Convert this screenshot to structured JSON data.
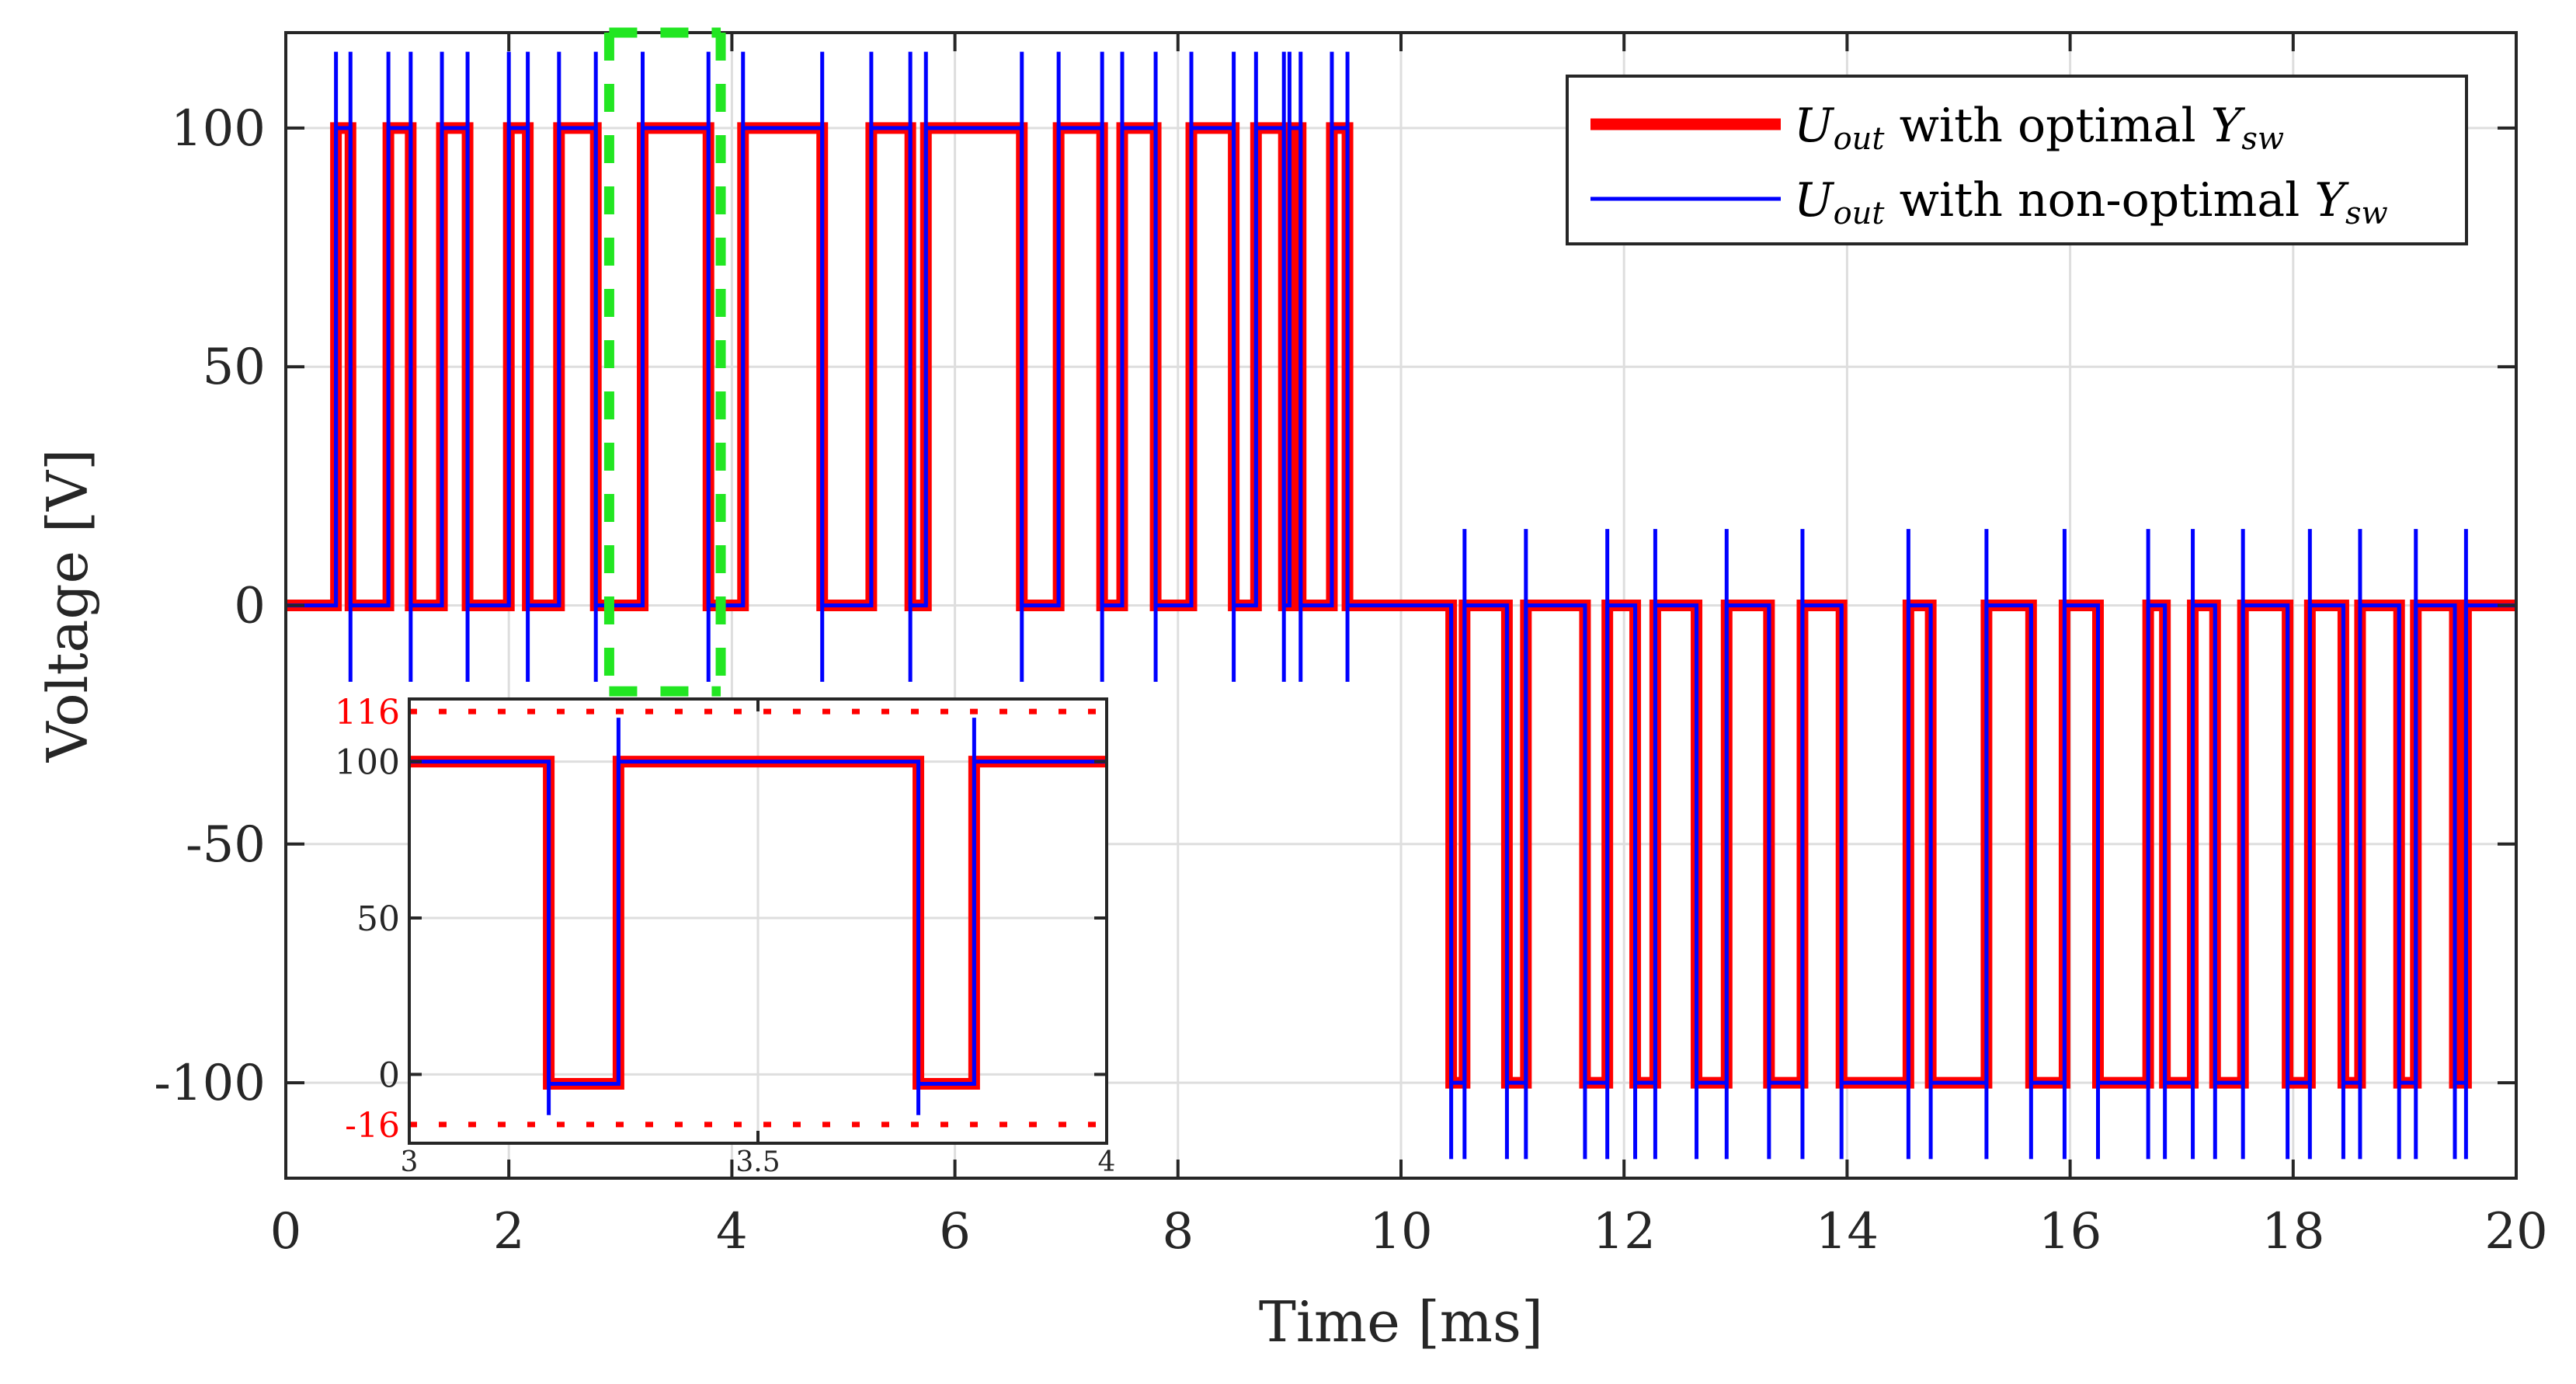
{
  "chart_data": {
    "type": "line",
    "xlabel": "Time [ms]",
    "ylabel": "Voltage [V]",
    "xlim": [
      0,
      20
    ],
    "ylim": [
      -120,
      120
    ],
    "xticks": [
      "0",
      "2",
      "4",
      "6",
      "8",
      "10",
      "12",
      "14",
      "16",
      "18",
      "20"
    ],
    "yticks": [
      "-100",
      "-50",
      "0",
      "50",
      "100"
    ],
    "xtick_values": [
      0,
      2,
      4,
      6,
      8,
      10,
      12,
      14,
      16,
      18,
      20
    ],
    "ytick_values": [
      -100,
      -50,
      0,
      50,
      100
    ],
    "grid": true,
    "legend_position": "top-right",
    "legend": [
      {
        "prefix": "U",
        "prefix_sub": "out",
        "middle": " with optimal ",
        "suffix": "Y",
        "suffix_sub": "sw",
        "color": "#ff0000"
      },
      {
        "prefix": "U",
        "prefix_sub": "out",
        "middle": " with non-optimal ",
        "suffix": "Y",
        "suffix_sub": "sw",
        "color": "#0000ff"
      }
    ],
    "series": [
      {
        "color": "#ff0000",
        "pulses_positive": [
          [
            0.45,
            0.58
          ],
          [
            0.92,
            1.12
          ],
          [
            1.4,
            1.63
          ],
          [
            2.0,
            2.17
          ],
          [
            2.45,
            2.78
          ],
          [
            3.2,
            3.79
          ],
          [
            4.1,
            4.81
          ],
          [
            5.25,
            5.6
          ],
          [
            5.74,
            6.6
          ],
          [
            6.93,
            7.32
          ],
          [
            7.5,
            7.8
          ],
          [
            8.12,
            8.5
          ],
          [
            8.7,
            8.95
          ],
          [
            9.0,
            9.1
          ],
          [
            9.38,
            9.52
          ]
        ],
        "pulses_negative": [
          [
            10.45,
            10.57
          ],
          [
            10.95,
            11.12
          ],
          [
            11.65,
            11.85
          ],
          [
            12.1,
            12.28
          ],
          [
            12.65,
            12.92
          ],
          [
            13.3,
            13.6
          ],
          [
            13.95,
            14.55
          ],
          [
            14.75,
            15.25
          ],
          [
            15.65,
            15.95
          ],
          [
            16.25,
            16.7
          ],
          [
            16.85,
            17.1
          ],
          [
            17.3,
            17.55
          ],
          [
            17.95,
            18.15
          ],
          [
            18.45,
            18.6
          ],
          [
            18.95,
            19.1
          ],
          [
            19.45,
            19.55
          ]
        ],
        "high": 100,
        "low": -100
      },
      {
        "color": "#0000ff",
        "spike_high": 116,
        "spike_low": -16
      }
    ],
    "inset": {
      "xlim": [
        3,
        4
      ],
      "ylim": [
        -22,
        120
      ],
      "xticks": [
        "3",
        "3.5",
        "4"
      ],
      "xtick_values": [
        3,
        3.5,
        4
      ],
      "yticks": [
        "0",
        "50",
        "100"
      ],
      "ytick_values": [
        0,
        50,
        100
      ],
      "ref_lines": [
        {
          "value": 116,
          "label": "116",
          "color": "#ff0000"
        },
        {
          "value": -16,
          "label": "-16",
          "color": "#ff0000"
        }
      ],
      "pulses_low": [
        [
          3.2,
          3.3
        ],
        [
          3.73,
          3.81
        ]
      ],
      "spikes_down": [
        3.2,
        3.73
      ],
      "spikes_up": [
        3.3,
        3.81
      ],
      "high": 100,
      "low": -3
    },
    "zoom_region": {
      "x": [
        2.9,
        3.9
      ],
      "y": [
        -18,
        120
      ],
      "color": "#22e622"
    }
  }
}
